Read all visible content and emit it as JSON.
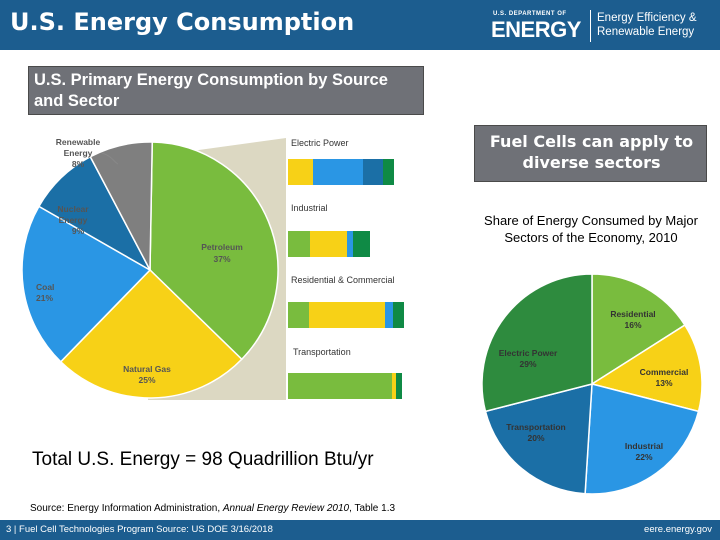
{
  "header": {
    "title": "U.S. Energy Consumption",
    "doe_department": "U.S. DEPARTMENT OF",
    "doe_energy": "ENERGY",
    "eere_line1": "Energy Efficiency &",
    "eere_line2": "Renewable Energy"
  },
  "subtitle": "U.S. Primary Energy Consumption by Source and Sector",
  "left_pie": {
    "slices": [
      {
        "name": "Renewable Energy",
        "line1": "Renewable",
        "line2": "Energy",
        "pct_label": "8%",
        "value": 8,
        "color": "#7f7f7f"
      },
      {
        "name": "Nuclear Energy",
        "line1": "Nuclear",
        "line2": "Energy",
        "pct_label": "9%",
        "value": 9,
        "color": "#1b6fa6"
      },
      {
        "name": "Coal",
        "line1": "Coal",
        "line2": "",
        "pct_label": "21%",
        "value": 21,
        "color": "#2a96e4"
      },
      {
        "name": "Natural Gas",
        "line1": "Natural Gas",
        "line2": "",
        "pct_label": "25%",
        "value": 25,
        "color": "#f7d117"
      },
      {
        "name": "Petroleum",
        "line1": "Petroleum",
        "line2": "",
        "pct_label": "37%",
        "value": 37,
        "color": "#79bc3e"
      }
    ]
  },
  "sector_bars": {
    "sectors": [
      {
        "name": "Electric Power",
        "segments": [
          {
            "source": "Natural Gas",
            "value": 25,
            "color": "#f7d117"
          },
          {
            "source": "Coal",
            "value": 50,
            "color": "#2a96e4"
          },
          {
            "source": "Nuclear Energy",
            "value": 20,
            "color": "#1b6fa6"
          },
          {
            "source": "Renewable Energy",
            "value": 11,
            "color": "#0f8a45"
          }
        ]
      },
      {
        "name": "Industrial",
        "segments": [
          {
            "source": "Petroleum",
            "value": 22,
            "color": "#79bc3e"
          },
          {
            "source": "Natural Gas",
            "value": 37,
            "color": "#f7d117"
          },
          {
            "source": "Coal",
            "value": 6,
            "color": "#2a96e4"
          },
          {
            "source": "Renewable Energy",
            "value": 17,
            "color": "#0f8a45"
          }
        ]
      },
      {
        "name": "Residential & Commercial",
        "segments": [
          {
            "source": "Petroleum",
            "value": 21,
            "color": "#79bc3e"
          },
          {
            "source": "Natural Gas",
            "value": 76,
            "color": "#f7d117"
          },
          {
            "source": "Coal",
            "value": 8,
            "color": "#2a96e4"
          },
          {
            "source": "Renewable Energy",
            "value": 11,
            "color": "#0f8a45"
          }
        ]
      },
      {
        "name": "Transportation",
        "segments": [
          {
            "source": "Petroleum",
            "value": 104,
            "color": "#79bc3e"
          },
          {
            "source": "Natural Gas",
            "value": 4,
            "color": "#f7d117"
          },
          {
            "source": "Renewable Energy",
            "value": 6,
            "color": "#0f8a45"
          }
        ]
      }
    ]
  },
  "fuel_cells_callout": "Fuel Cells can apply to diverse sectors",
  "share_title": "Share of Energy Consumed by Major Sectors of the Economy, 2010",
  "right_pie": {
    "slices": [
      {
        "name": "Residential",
        "pct_label": "16%",
        "value": 16,
        "color": "#79bc3e"
      },
      {
        "name": "Commercial",
        "pct_label": "13%",
        "value": 13,
        "color": "#f7d117"
      },
      {
        "name": "Industrial",
        "pct_label": "22%",
        "value": 22,
        "color": "#2a96e4"
      },
      {
        "name": "Transportation",
        "pct_label": "20%",
        "value": 20,
        "color": "#1b6fa6"
      },
      {
        "name": "Electric Power",
        "pct_label": "29%",
        "value": 29,
        "color": "#2e8b3e"
      }
    ]
  },
  "total_text": "Total U.S. Energy = 98 Quadrillion Btu/yr",
  "source": {
    "prefix": "Source: Energy Information Administration, ",
    "italic": "Annual Energy Review 2010",
    "suffix": ", Table 1.3"
  },
  "footer": {
    "left": "3 | Fuel Cell Technologies Program Source: US DOE 3/16/2018",
    "right": "eere.energy.gov"
  }
}
